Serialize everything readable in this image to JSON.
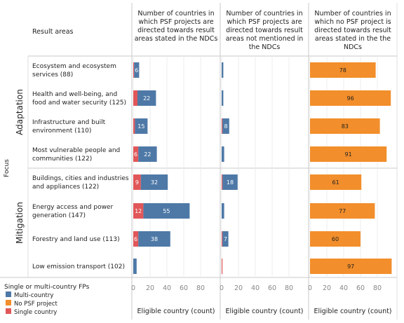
{
  "chart_data": {
    "type": "bar",
    "orientation": "horizontal",
    "stacked": true,
    "header": {
      "rows_label": "Result areas",
      "panel_titles": [
        [
          "Number of countries in",
          "which PSF projects are",
          "directed towards result",
          "areas stated in the NDCs"
        ],
        [
          "Number of countries in",
          "which PSF projects are",
          "directed towards result",
          "areas not mentioned in",
          "the NDCs"
        ],
        [
          "Number of countries in",
          "which no PSF project is",
          "directed towards result",
          "areas stated in the the",
          "NDCs"
        ]
      ]
    },
    "focus_label": "Focus",
    "groups": [
      "Adaptation",
      "Mitigation"
    ],
    "categories": [
      {
        "group": "Adaptation",
        "label": [
          "Ecosystem and ecosystem",
          "services (88)"
        ]
      },
      {
        "group": "Adaptation",
        "label": [
          "Health and well-being, and",
          "food and water security (125)"
        ]
      },
      {
        "group": "Adaptation",
        "label": [
          "Infrastructure and built",
          "environment (110)"
        ]
      },
      {
        "group": "Adaptation",
        "label": [
          "Most vulnerable people and",
          "communities (122)"
        ]
      },
      {
        "group": "Mitigation",
        "label": [
          "Buildings, cities and industries",
          "and appliances (122)"
        ]
      },
      {
        "group": "Mitigation",
        "label": [
          "Energy access and power",
          "generation (147)"
        ]
      },
      {
        "group": "Mitigation",
        "label": [
          "Forestry and land use (113)"
        ]
      },
      {
        "group": "Mitigation",
        "label": [
          "Low emission transport (102)"
        ]
      }
    ],
    "panels": [
      {
        "series": [
          {
            "name": "Single country",
            "values": [
              1,
              5,
              2,
              6,
              9,
              12,
              6,
              0
            ],
            "labels": [
              "",
              "",
              "",
              "6",
              "9",
              "12",
              "6",
              ""
            ]
          },
          {
            "name": "Multi-country",
            "values": [
              6,
              22,
              15,
              22,
              32,
              55,
              38,
              4
            ],
            "labels": [
              "6",
              "22",
              "15",
              "22",
              "32",
              "55",
              "38",
              ""
            ]
          }
        ]
      },
      {
        "series": [
          {
            "name": "Single country",
            "values": [
              0,
              0,
              1,
              0,
              1,
              0,
              1,
              1
            ],
            "labels": [
              "",
              "",
              "",
              "",
              "",
              "",
              "",
              ""
            ]
          },
          {
            "name": "Multi-country",
            "values": [
              2,
              2,
              8,
              3,
              18,
              3,
              7,
              0
            ],
            "labels": [
              "",
              "",
              "8",
              "",
              "18",
              "",
              "7",
              ""
            ]
          }
        ]
      },
      {
        "series": [
          {
            "name": "No PSF project",
            "values": [
              78,
              96,
              83,
              91,
              61,
              77,
              60,
              97
            ],
            "labels": [
              "78",
              "96",
              "83",
              "91",
              "61",
              "77",
              "60",
              "97"
            ]
          }
        ]
      }
    ],
    "xlim": [
      0,
      100
    ],
    "x_ticks": [
      "0",
      "20",
      "40",
      "60",
      "80"
    ],
    "xlabel": "Eligible country (count)",
    "legend": {
      "title": "Single or multi-country FPs",
      "items": [
        {
          "name": "Multi-country",
          "color": "#4E79A7"
        },
        {
          "name": "No PSF project",
          "color": "#F28E2B"
        },
        {
          "name": "Single country",
          "color": "#E15759"
        }
      ]
    },
    "colors": {
      "Multi-country": "#4E79A7",
      "No PSF project": "#F28E2B",
      "Single country": "#E15759"
    }
  }
}
